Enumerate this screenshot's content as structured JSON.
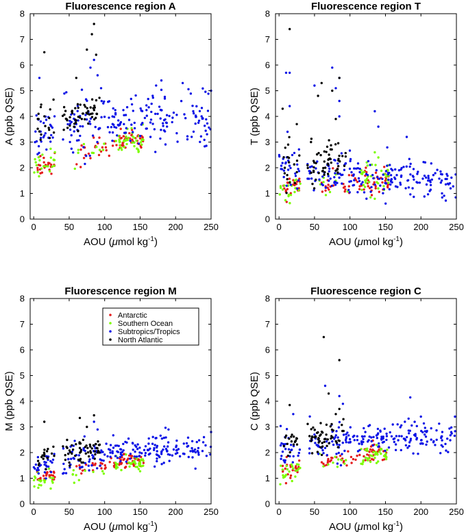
{
  "figure": {
    "series_names": [
      "Antarctic",
      "Southern Ocean",
      "Subtropics/Tropics",
      "North Atlantic"
    ],
    "colors": {
      "Antarctic": "#e41a1c",
      "Southern Ocean": "#7cfc00",
      "Subtropics/Tropics": "#0a12e6",
      "North Atlantic": "#000000"
    }
  },
  "chart_data": [
    {
      "type": "scatter",
      "title": "Fluorescence region A",
      "xlabel_main": "AOU (",
      "xlabel_mu": "μ",
      "xlabel_rest": "mol kg",
      "xlabel_exp": "-1",
      "xlabel_close": ")",
      "ylabel": "A (ppb QSE)",
      "xlim": [
        -5,
        250
      ],
      "ylim": [
        0,
        8
      ],
      "xticks": [
        "0",
        "50",
        "100",
        "150",
        "200",
        "250"
      ],
      "yticks": [
        "0",
        "1",
        "2",
        "3",
        "4",
        "5",
        "6",
        "7",
        "8"
      ],
      "legend": false,
      "series": [
        {
          "name": "Antarctic",
          "cloud": "antarctic",
          "center": [
            2.15,
            3.1
          ],
          "slope": 0.0056,
          "spread": 0.22,
          "spikes": []
        },
        {
          "name": "Southern Ocean",
          "cloud": "southern",
          "center": [
            2.05,
            3.1
          ],
          "slope": 0.0058,
          "spread": 0.22,
          "spikes": []
        },
        {
          "name": "Subtropics/Tropics",
          "cloud": "subtropics",
          "center": [
            3.25,
            3.9
          ],
          "slope": 0.012,
          "spread": 0.55,
          "spikes": [
            [
              85,
              6.2
            ],
            [
              80,
              5.9
            ],
            [
              8,
              5.5
            ],
            [
              90,
              5.6
            ],
            [
              210,
              5.3
            ],
            [
              250,
              5.0
            ],
            [
              180,
              5.4
            ],
            [
              95,
              5.1
            ]
          ]
        },
        {
          "name": "North Atlantic",
          "cloud": "northatlantic",
          "center": [
            3.7,
            4.6
          ],
          "slope": 0.012,
          "spread": 0.35,
          "spikes": [
            [
              85,
              7.6
            ],
            [
              75,
              6.6
            ],
            [
              82,
              7.2
            ],
            [
              15,
              6.5
            ],
            [
              60,
              5.5
            ],
            [
              88,
              6.4
            ]
          ]
        }
      ]
    },
    {
      "type": "scatter",
      "title": "Fluorescence region T",
      "xlabel_main": "AOU (",
      "xlabel_mu": "μ",
      "xlabel_rest": "mol kg",
      "xlabel_exp": "-1",
      "xlabel_close": ")",
      "ylabel": "T (ppb QSE)",
      "xlim": [
        -5,
        250
      ],
      "ylim": [
        0,
        8
      ],
      "xticks": [
        "0",
        "50",
        "100",
        "150",
        "200",
        "250"
      ],
      "yticks": [
        "0",
        "1",
        "2",
        "3",
        "4",
        "5",
        "6",
        "7",
        "8"
      ],
      "legend": false,
      "series": [
        {
          "name": "Antarctic",
          "cloud": "antarctic",
          "center": [
            1.25,
            1.5
          ],
          "slope": 0.0,
          "spread": 0.22,
          "spikes": []
        },
        {
          "name": "Southern Ocean",
          "cloud": "southern",
          "center": [
            1.2,
            1.6
          ],
          "slope": 0.0,
          "spread": 0.3,
          "spikes": [
            [
              135,
              2.6
            ],
            [
              140,
              2.4
            ]
          ]
        },
        {
          "name": "Subtropics/Tropics",
          "cloud": "subtropics",
          "center": [
            2.0,
            1.5
          ],
          "slope": -0.002,
          "spread": 0.35,
          "spikes": [
            [
              10,
              5.7
            ],
            [
              15,
              5.7
            ],
            [
              75,
              5.9
            ],
            [
              85,
              5.5
            ],
            [
              50,
              5.2
            ],
            [
              80,
              5.1
            ],
            [
              135,
              4.2
            ],
            [
              85,
              4.6
            ],
            [
              15,
              4.4
            ],
            [
              140,
              3.6
            ],
            [
              12,
              3.4
            ],
            [
              85,
              4.0
            ],
            [
              180,
              3.2
            ]
          ]
        },
        {
          "name": "North Atlantic",
          "cloud": "northatlantic",
          "center": [
            2.0,
            2.5
          ],
          "slope": 0.0,
          "spread": 0.45,
          "spikes": [
            [
              15,
              7.4
            ],
            [
              85,
              5.5
            ],
            [
              75,
              5.0
            ],
            [
              5,
              4.3
            ],
            [
              55,
              4.8
            ],
            [
              60,
              5.3
            ],
            [
              25,
              3.7
            ],
            [
              45,
              3.0
            ],
            [
              80,
              3.9
            ]
          ]
        }
      ]
    },
    {
      "type": "scatter",
      "title": "Fluorescence region M",
      "xlabel_main": "AOU (",
      "xlabel_mu": "μ",
      "xlabel_rest": "mol kg",
      "xlabel_exp": "-1",
      "xlabel_close": ")",
      "ylabel": "M (ppb QSE)",
      "xlim": [
        -5,
        250
      ],
      "ylim": [
        0,
        8
      ],
      "xticks": [
        "0",
        "50",
        "100",
        "150",
        "200",
        "250"
      ],
      "yticks": [
        "0",
        "1",
        "2",
        "3",
        "4",
        "5",
        "6",
        "7",
        "8"
      ],
      "legend": true,
      "series": [
        {
          "name": "Antarctic",
          "cloud": "antarctic",
          "center": [
            1.1,
            1.7
          ],
          "slope": 0.005,
          "spread": 0.15,
          "spikes": []
        },
        {
          "name": "Southern Ocean",
          "cloud": "southern",
          "center": [
            0.9,
            1.6
          ],
          "slope": 0.005,
          "spread": 0.15,
          "spikes": []
        },
        {
          "name": "Subtropics/Tropics",
          "cloud": "subtropics",
          "center": [
            1.6,
            2.1
          ],
          "slope": 0.004,
          "spread": 0.25,
          "spikes": [
            [
              85,
              3.2
            ],
            [
              90,
              2.9
            ],
            [
              250,
              2.8
            ],
            [
              190,
              2.9
            ],
            [
              240,
              2.6
            ]
          ]
        },
        {
          "name": "North Atlantic",
          "cloud": "northatlantic",
          "center": [
            1.8,
            2.4
          ],
          "slope": 0.009,
          "spread": 0.25,
          "spikes": [
            [
              15,
              3.2
            ],
            [
              85,
              3.45
            ],
            [
              65,
              3.35
            ],
            [
              75,
              3.0
            ]
          ]
        }
      ]
    },
    {
      "type": "scatter",
      "title": "Fluorescence region C",
      "xlabel_main": "AOU (",
      "xlabel_mu": "μ",
      "xlabel_rest": "mol kg",
      "xlabel_exp": "-1",
      "xlabel_close": ")",
      "ylabel": "C (ppb QSE)",
      "xlim": [
        -5,
        250
      ],
      "ylim": [
        0,
        8
      ],
      "xticks": [
        "0",
        "50",
        "100",
        "150",
        "200",
        "250"
      ],
      "yticks": [
        "0",
        "1",
        "2",
        "3",
        "4",
        "5",
        "6",
        "7",
        "8"
      ],
      "legend": false,
      "series": [
        {
          "name": "Antarctic",
          "cloud": "antarctic",
          "center": [
            1.3,
            2.0
          ],
          "slope": 0.006,
          "spread": 0.18,
          "spikes": []
        },
        {
          "name": "Southern Ocean",
          "cloud": "southern",
          "center": [
            1.2,
            2.0
          ],
          "slope": 0.007,
          "spread": 0.2,
          "spikes": []
        },
        {
          "name": "Subtropics/Tropics",
          "cloud": "subtropics",
          "center": [
            2.1,
            2.6
          ],
          "slope": 0.006,
          "spread": 0.35,
          "spikes": [
            [
              65,
              4.6
            ],
            [
              85,
              4.2
            ],
            [
              185,
              4.15
            ],
            [
              248,
              3.4
            ],
            [
              20,
              3.5
            ],
            [
              200,
              3.4
            ],
            [
              90,
              3.9
            ]
          ]
        },
        {
          "name": "North Atlantic",
          "cloud": "northatlantic",
          "center": [
            2.4,
            2.8
          ],
          "slope": 0.006,
          "spread": 0.3,
          "spikes": [
            [
              63,
              6.5
            ],
            [
              85,
              5.6
            ],
            [
              70,
              4.3
            ],
            [
              15,
              3.85
            ],
            [
              85,
              3.7
            ],
            [
              80,
              3.5
            ]
          ]
        }
      ]
    }
  ]
}
